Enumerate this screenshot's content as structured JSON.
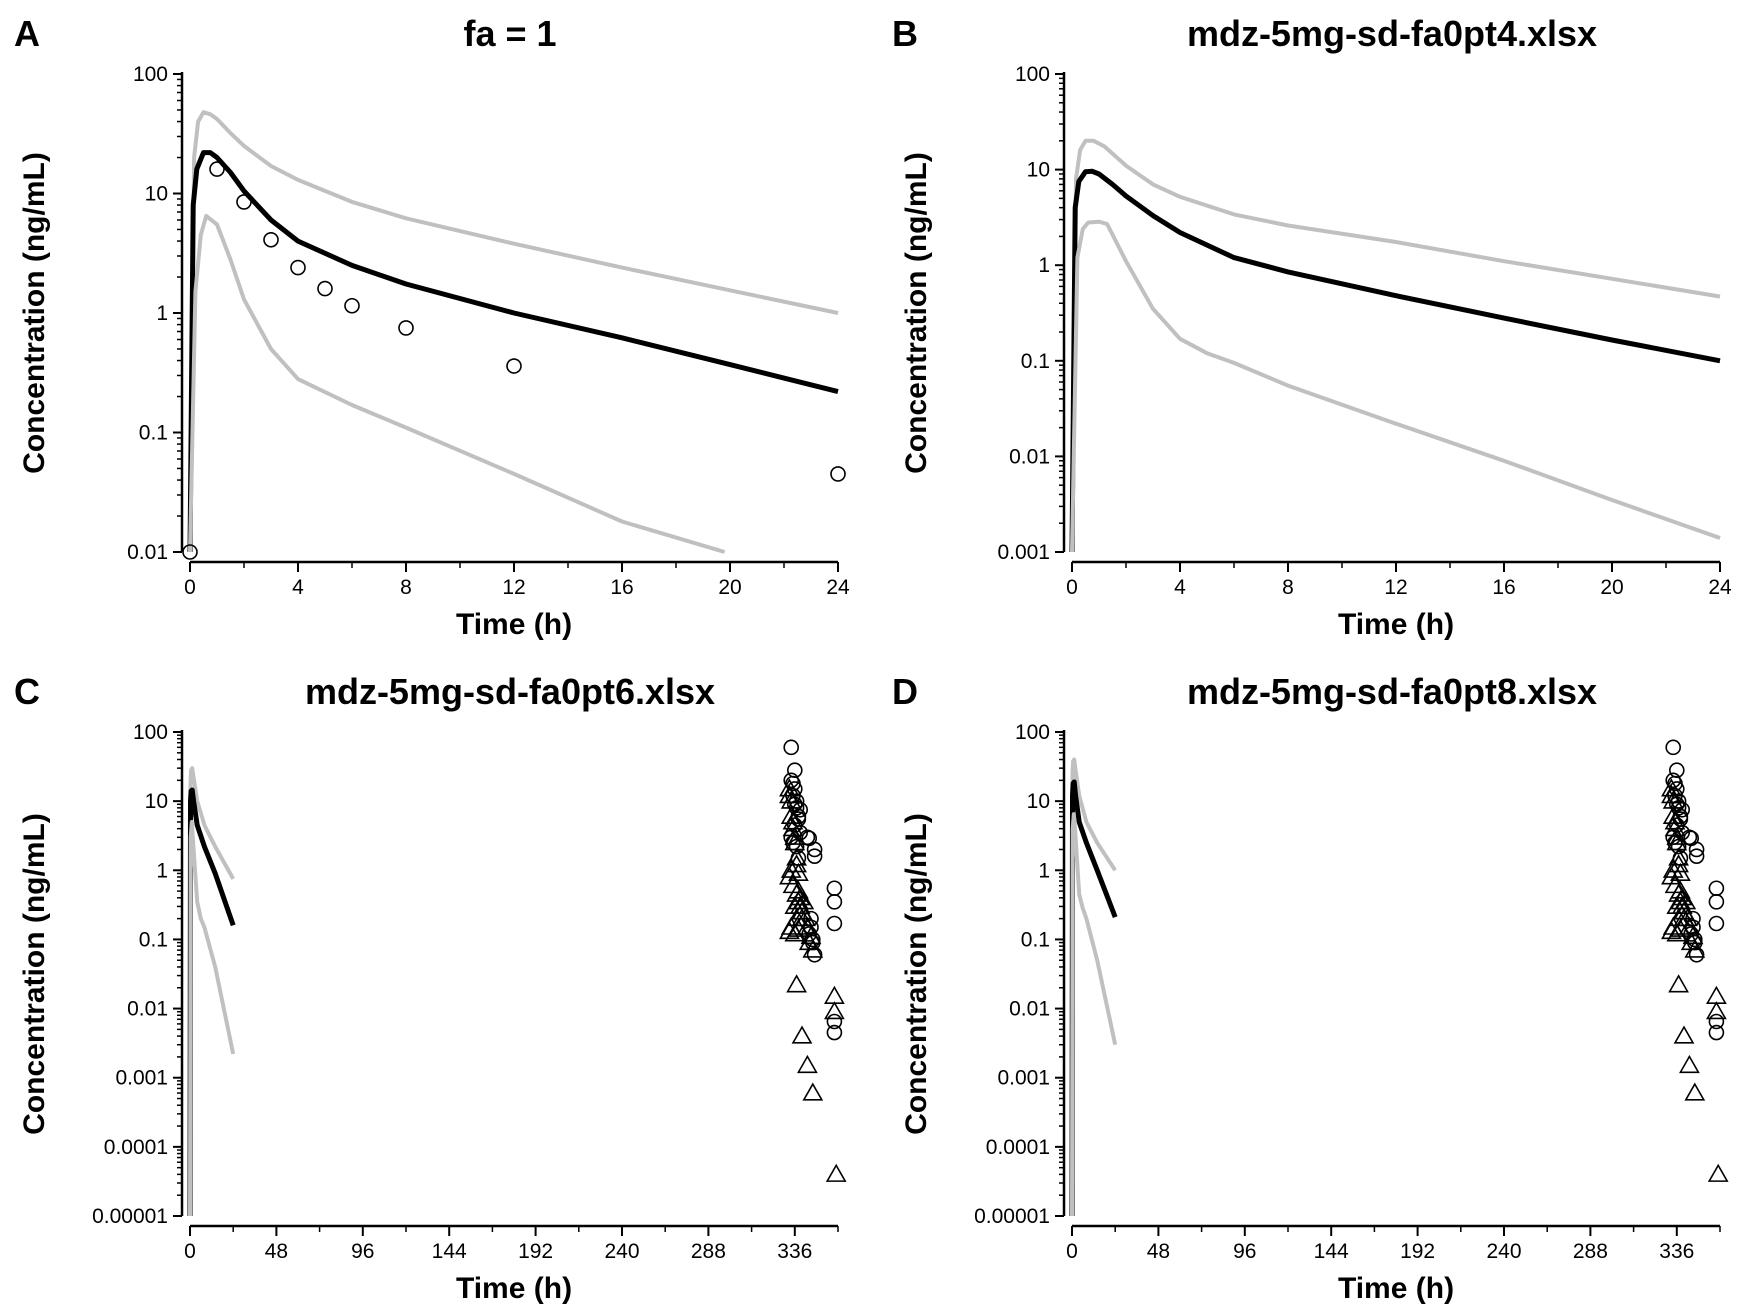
{
  "colors": {
    "median": "#000000",
    "percentile": "#c0c0c0",
    "observed": "#000000"
  },
  "chart_data": [
    {
      "type": "line",
      "panel_letter": "A",
      "title": "fa = 1",
      "xlabel": "Time (h)",
      "ylabel": "Concentration (ng/mL)",
      "y_scale": "log",
      "xlim": [
        0,
        24
      ],
      "ylim": [
        0.01,
        100
      ],
      "x_ticks": [
        0,
        4,
        8,
        12,
        16,
        20,
        24
      ],
      "x_tick_labels": [
        "0",
        "4",
        "8",
        "12",
        "16",
        "20",
        "24"
      ],
      "y_ticks": [
        0.01,
        0.1,
        1,
        10,
        100
      ],
      "y_tick_labels": [
        "0.01",
        "0.1",
        "1",
        "10",
        "100"
      ],
      "grid": false,
      "series": [
        {
          "role": "upper",
          "x": [
            0,
            0.15,
            0.3,
            0.5,
            0.75,
            1,
            1.5,
            2,
            3,
            4,
            6,
            8,
            12,
            16,
            20,
            24
          ],
          "y": [
            0.01,
            20,
            40,
            48,
            46,
            42,
            32,
            25,
            17,
            13,
            8.5,
            6.2,
            3.8,
            2.4,
            1.55,
            1.0
          ]
        },
        {
          "role": "median",
          "x": [
            0,
            0.12,
            0.25,
            0.5,
            0.75,
            1,
            1.5,
            2,
            3,
            4,
            6,
            8,
            12,
            16,
            20,
            24
          ],
          "y": [
            0.005,
            8,
            16,
            22,
            22,
            20,
            15,
            10.5,
            6.0,
            4.0,
            2.5,
            1.75,
            1.0,
            0.62,
            0.37,
            0.22
          ]
        },
        {
          "role": "lower",
          "x": [
            0,
            0.2,
            0.4,
            0.6,
            1,
            1.5,
            2,
            3,
            4,
            6,
            8,
            12,
            16,
            19.8
          ],
          "y": [
            0.01,
            1.5,
            4.5,
            6.5,
            5.5,
            2.8,
            1.3,
            0.5,
            0.28,
            0.17,
            0.11,
            0.045,
            0.018,
            0.008
          ]
        },
        {
          "role": "observed",
          "marker": "circle",
          "x": [
            0,
            1,
            2,
            3,
            4,
            5,
            6,
            8,
            12,
            24
          ],
          "y": [
            0.008,
            16,
            8.5,
            4.1,
            2.4,
            1.6,
            1.15,
            0.75,
            0.36,
            0.045
          ]
        }
      ]
    },
    {
      "type": "line",
      "panel_letter": "B",
      "title": "mdz-5mg-sd-fa0pt4.xlsx",
      "xlabel": "Time (h)",
      "ylabel": "Concentration (ng/mL)",
      "y_scale": "log",
      "xlim": [
        0,
        24
      ],
      "ylim": [
        0.001,
        100
      ],
      "x_ticks": [
        0,
        4,
        8,
        12,
        16,
        20,
        24
      ],
      "x_tick_labels": [
        "0",
        "4",
        "8",
        "12",
        "16",
        "20",
        "24"
      ],
      "y_ticks": [
        0.001,
        0.01,
        0.1,
        1,
        10,
        100
      ],
      "y_tick_labels": [
        "0.001",
        "0.01",
        "0.1",
        "1",
        "10",
        "100"
      ],
      "grid": false,
      "series": [
        {
          "role": "upper",
          "x": [
            0,
            0.15,
            0.3,
            0.5,
            0.8,
            1.2,
            2,
            3,
            4,
            6,
            8,
            12,
            16,
            20,
            24
          ],
          "y": [
            0.001,
            8,
            16,
            20,
            20,
            17.5,
            11,
            7,
            5.2,
            3.4,
            2.6,
            1.75,
            1.1,
            0.72,
            0.47
          ]
        },
        {
          "role": "median",
          "x": [
            0,
            0.12,
            0.25,
            0.5,
            0.75,
            1,
            1.5,
            2,
            3,
            4,
            6,
            8,
            12,
            16,
            20,
            24
          ],
          "y": [
            0.001,
            4,
            7.5,
            9.5,
            9.6,
            9,
            7,
            5.3,
            3.3,
            2.2,
            1.2,
            0.85,
            0.48,
            0.28,
            0.165,
            0.1
          ]
        },
        {
          "role": "lower",
          "x": [
            0,
            0.2,
            0.4,
            0.6,
            1.0,
            1.3,
            2,
            3,
            4,
            5,
            6,
            8,
            12,
            16,
            20,
            24
          ],
          "y": [
            0.001,
            1.2,
            2.4,
            2.8,
            2.85,
            2.7,
            1.1,
            0.35,
            0.17,
            0.12,
            0.095,
            0.055,
            0.022,
            0.009,
            0.0035,
            0.0014
          ]
        }
      ]
    },
    {
      "type": "line",
      "panel_letter": "C",
      "title": "mdz-5mg-sd-fa0pt6.xlsx",
      "xlabel": "Time (h)",
      "ylabel": "Concentration (ng/mL)",
      "y_scale": "log",
      "xlim": [
        0,
        360
      ],
      "ylim": [
        1e-05,
        100
      ],
      "x_ticks": [
        0,
        48,
        96,
        144,
        192,
        240,
        288,
        336
      ],
      "x_tick_labels": [
        "0",
        "48",
        "96",
        "144",
        "192",
        "240",
        "288",
        "336"
      ],
      "y_ticks": [
        1e-05,
        0.0001,
        0.001,
        0.01,
        0.1,
        1,
        10,
        100
      ],
      "y_tick_labels": [
        "0.00001",
        "0.0001",
        "0.001",
        "0.01",
        "0.1",
        "1",
        "10",
        "100"
      ],
      "grid": false,
      "series": [
        {
          "role": "upper",
          "x": [
            0,
            0.3,
            0.6,
            1.2,
            2,
            4,
            8,
            14,
            24
          ],
          "y": [
            1e-05,
            18,
            28,
            30,
            22,
            10,
            4.5,
            2.2,
            0.75
          ]
        },
        {
          "role": "median",
          "x": [
            0,
            0.3,
            0.6,
            1.2,
            2,
            4,
            8,
            14,
            24
          ],
          "y": [
            1e-05,
            10,
            14,
            14.5,
            10,
            4.5,
            2.2,
            0.9,
            0.16
          ]
        },
        {
          "role": "lower",
          "x": [
            0,
            0.4,
            1,
            2,
            4,
            6,
            8,
            14,
            24
          ],
          "y": [
            1e-05,
            3,
            5,
            2,
            0.35,
            0.2,
            0.15,
            0.04,
            0.0022
          ]
        },
        {
          "role": "observed",
          "marker": "circle",
          "x": [
            334,
            334,
            335,
            335,
            336,
            336,
            336,
            337,
            337,
            338,
            338,
            339,
            339,
            334,
            335,
            336,
            337,
            338,
            343,
            344,
            345,
            346,
            347,
            347,
            344,
            345,
            346,
            347,
            358,
            358,
            358,
            358,
            358
          ],
          "y": [
            60,
            20,
            18,
            12,
            28,
            15,
            9,
            10,
            8,
            6,
            5.5,
            7.5,
            3.5,
            3,
            2.5,
            4.5,
            2.2,
            1.5,
            3,
            2.9,
            0.15,
            0.09,
            2,
            1.6,
            0.12,
            0.2,
            0.1,
            0.06,
            0.55,
            0.35,
            0.17,
            0.0065,
            0.0045
          ]
        },
        {
          "role": "observed",
          "marker": "triangle",
          "x": [
            333,
            333,
            334,
            334,
            335,
            335,
            336,
            336,
            337,
            337,
            338,
            338,
            339,
            339,
            340,
            340,
            333,
            334,
            335,
            336,
            337,
            338,
            333,
            334,
            336,
            337,
            338,
            340,
            341,
            342,
            343,
            344,
            345,
            346,
            337,
            340,
            343,
            346,
            358,
            358,
            359
          ],
          "y": [
            15,
            12,
            10,
            6,
            5,
            4,
            3,
            2.5,
            1.5,
            1.2,
            0.9,
            0.5,
            0.4,
            0.3,
            0.25,
            0.2,
            0.8,
            1,
            0.6,
            0.3,
            0.45,
            0.35,
            0.13,
            0.15,
            0.12,
            0.2,
            0.14,
            0.25,
            0.35,
            0.2,
            0.15,
            0.09,
            0.11,
            0.07,
            0.022,
            0.004,
            0.0015,
            0.0006,
            0.015,
            0.009,
            4e-05
          ]
        }
      ]
    },
    {
      "type": "line",
      "panel_letter": "D",
      "title": "mdz-5mg-sd-fa0pt8.xlsx",
      "xlabel": "Time (h)",
      "ylabel": "Concentration (ng/mL)",
      "y_scale": "log",
      "xlim": [
        0,
        360
      ],
      "ylim": [
        1e-05,
        100
      ],
      "x_ticks": [
        0,
        48,
        96,
        144,
        192,
        240,
        288,
        336
      ],
      "x_tick_labels": [
        "0",
        "48",
        "96",
        "144",
        "192",
        "240",
        "288",
        "336"
      ],
      "y_ticks": [
        1e-05,
        0.0001,
        0.001,
        0.01,
        0.1,
        1,
        10,
        100
      ],
      "y_tick_labels": [
        "0.00001",
        "0.0001",
        "0.001",
        "0.01",
        "0.1",
        "1",
        "10",
        "100"
      ],
      "grid": false,
      "series": [
        {
          "role": "upper",
          "x": [
            0,
            0.3,
            0.6,
            1.2,
            2,
            4,
            8,
            14,
            24
          ],
          "y": [
            1e-05,
            25,
            38,
            40,
            28,
            12,
            5,
            2.5,
            1.0
          ]
        },
        {
          "role": "median",
          "x": [
            0,
            0.3,
            0.6,
            1.2,
            2,
            4,
            8,
            14,
            24
          ],
          "y": [
            1e-05,
            12,
            18,
            19,
            12,
            5,
            2.5,
            1.0,
            0.21
          ]
        },
        {
          "role": "lower",
          "x": [
            0,
            0.4,
            1,
            2,
            4,
            6,
            8,
            14,
            24
          ],
          "y": [
            1e-05,
            4,
            6.5,
            3,
            0.45,
            0.28,
            0.2,
            0.05,
            0.003
          ]
        },
        {
          "role": "observed",
          "marker": "circle",
          "x": [
            334,
            334,
            335,
            335,
            336,
            336,
            336,
            337,
            337,
            338,
            338,
            339,
            339,
            334,
            335,
            336,
            337,
            338,
            343,
            344,
            345,
            346,
            347,
            347,
            344,
            345,
            346,
            347,
            358,
            358,
            358,
            358,
            358
          ],
          "y": [
            60,
            20,
            18,
            12,
            28,
            15,
            9,
            10,
            8,
            6,
            5.5,
            7.5,
            3.5,
            3,
            2.5,
            4.5,
            2.2,
            1.5,
            3,
            2.9,
            0.15,
            0.09,
            2,
            1.6,
            0.12,
            0.2,
            0.1,
            0.06,
            0.55,
            0.35,
            0.17,
            0.0065,
            0.0045
          ]
        },
        {
          "role": "observed",
          "marker": "triangle",
          "x": [
            333,
            333,
            334,
            334,
            335,
            335,
            336,
            336,
            337,
            337,
            338,
            338,
            339,
            339,
            340,
            340,
            333,
            334,
            335,
            336,
            337,
            338,
            333,
            334,
            336,
            337,
            338,
            340,
            341,
            342,
            343,
            344,
            345,
            346,
            337,
            340,
            343,
            346,
            358,
            358,
            359
          ],
          "y": [
            15,
            12,
            10,
            6,
            5,
            4,
            3,
            2.5,
            1.5,
            1.2,
            0.9,
            0.5,
            0.4,
            0.3,
            0.25,
            0.2,
            0.8,
            1,
            0.6,
            0.3,
            0.45,
            0.35,
            0.13,
            0.15,
            0.12,
            0.2,
            0.14,
            0.25,
            0.35,
            0.2,
            0.15,
            0.09,
            0.11,
            0.07,
            0.022,
            0.004,
            0.0015,
            0.0006,
            0.015,
            0.009,
            4e-05
          ]
        }
      ]
    }
  ]
}
